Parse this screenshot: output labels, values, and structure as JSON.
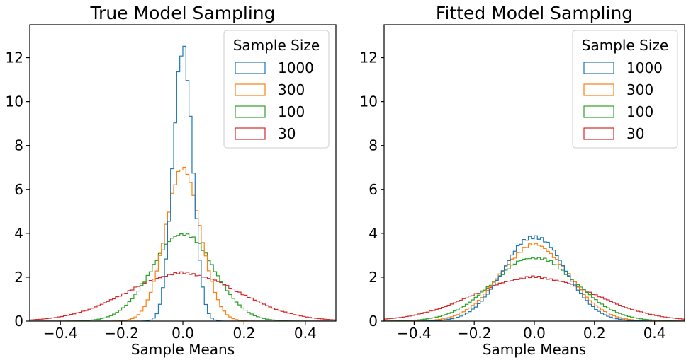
{
  "chart_data": [
    {
      "type": "histogram",
      "title": "True Model Sampling",
      "xlabel": "Sample Means",
      "ylabel": "",
      "xlim": [
        -0.5,
        0.5
      ],
      "ylim": [
        0,
        13.5
      ],
      "xticks": [
        -0.4,
        -0.2,
        0.0,
        0.2,
        0.4
      ],
      "xtick_labels": [
        "−0.4",
        "−0.2",
        "0.0",
        "0.2",
        "0.4"
      ],
      "yticks": [
        0,
        2,
        4,
        6,
        8,
        10,
        12
      ],
      "ytick_labels": [
        "0",
        "2",
        "4",
        "6",
        "8",
        "10",
        "12"
      ],
      "legend": {
        "title": "Sample Size",
        "placement": "upper right"
      },
      "histtype": "step",
      "series": [
        {
          "name": "1000",
          "color": "#1f77b4",
          "std": 0.0316,
          "peak": 12.6
        },
        {
          "name": "300",
          "color": "#ff7f0e",
          "std": 0.0577,
          "peak": 6.9
        },
        {
          "name": "100",
          "color": "#2ca02c",
          "std": 0.1,
          "peak": 4.0
        },
        {
          "name": "30",
          "color": "#d62728",
          "std": 0.183,
          "peak": 2.18
        }
      ]
    },
    {
      "type": "histogram",
      "title": "Fitted Model Sampling",
      "xlabel": "Sample Means",
      "ylabel": "",
      "xlim": [
        -0.5,
        0.5
      ],
      "ylim": [
        0,
        13.5
      ],
      "xticks": [
        -0.4,
        -0.2,
        0.0,
        0.2,
        0.4
      ],
      "xtick_labels": [
        "−0.4",
        "−0.2",
        "0.0",
        "0.2",
        "0.4"
      ],
      "yticks": [
        0,
        2,
        4,
        6,
        8,
        10,
        12
      ],
      "ytick_labels": [
        "0",
        "2",
        "4",
        "6",
        "8",
        "10",
        "12"
      ],
      "legend": {
        "title": "Sample Size",
        "placement": "upper right"
      },
      "histtype": "step",
      "series": [
        {
          "name": "1000",
          "color": "#1f77b4",
          "std": 0.103,
          "peak": 3.87
        },
        {
          "name": "300",
          "color": "#ff7f0e",
          "std": 0.115,
          "peak": 3.47
        },
        {
          "name": "100",
          "color": "#2ca02c",
          "std": 0.138,
          "peak": 2.9
        },
        {
          "name": "30",
          "color": "#d62728",
          "std": 0.2,
          "peak": 2.0
        }
      ]
    }
  ]
}
